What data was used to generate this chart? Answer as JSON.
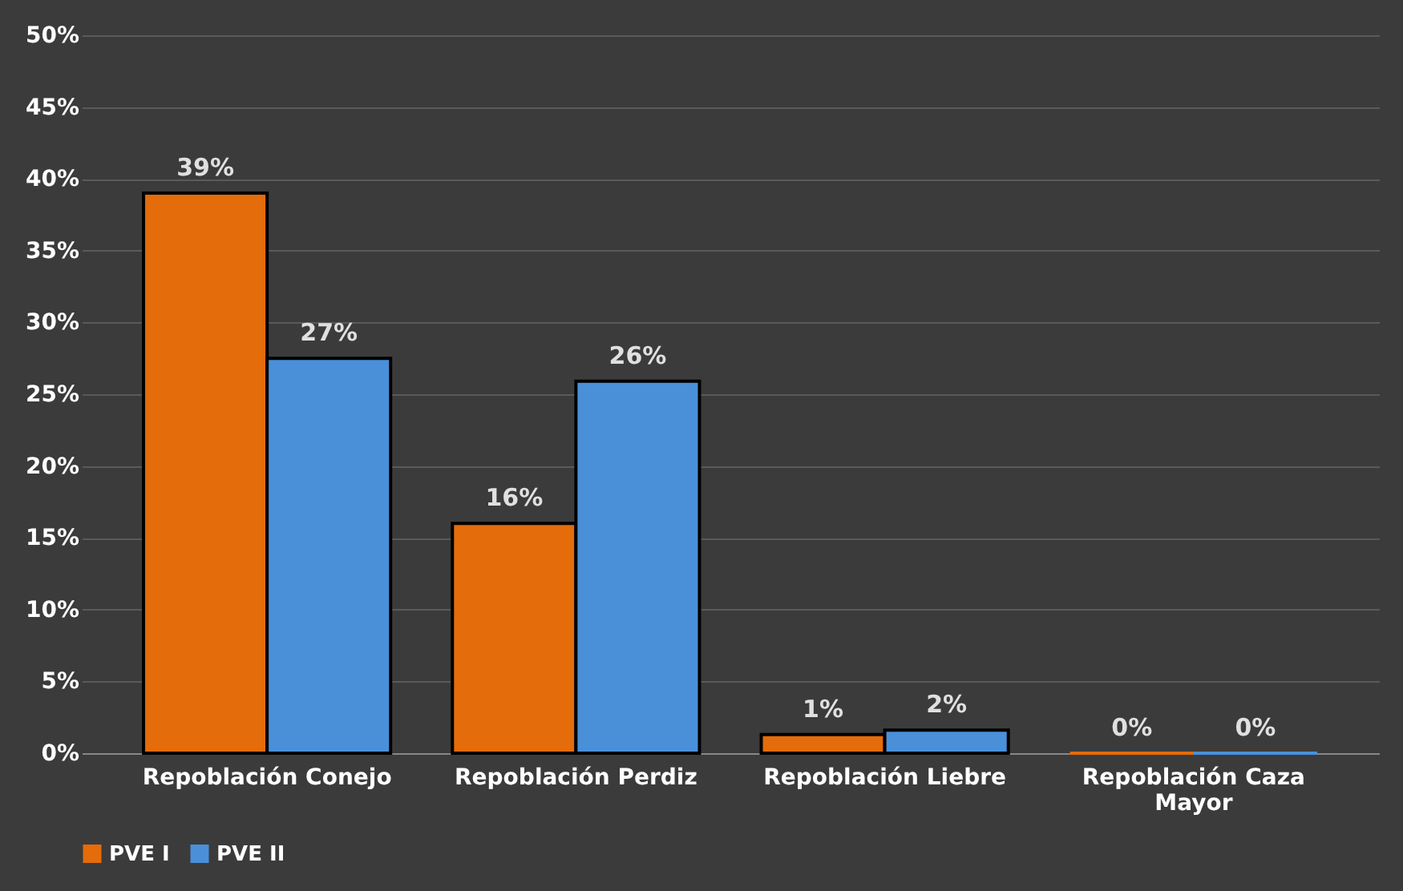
{
  "chart_data": {
    "type": "bar",
    "categories": [
      "Repoblación Conejo",
      "Repoblación Perdiz",
      "Repoblación Liebre",
      "Repoblación Caza Mayor"
    ],
    "series": [
      {
        "name": "PVE I",
        "color": "#e46c0a",
        "values": [
          39,
          16,
          1.3,
          0
        ],
        "value_labels": [
          "39%",
          "16%",
          "1%",
          "0%"
        ]
      },
      {
        "name": "PVE II",
        "color": "#4a90d9",
        "values": [
          27.5,
          25.9,
          1.6,
          0
        ],
        "value_labels": [
          "27%",
          "26%",
          "2%",
          "0%"
        ]
      }
    ],
    "ylim": [
      0,
      50
    ],
    "yticks": [
      {
        "value": 0,
        "label": "0%"
      },
      {
        "value": 5,
        "label": "5%"
      },
      {
        "value": 10,
        "label": "10%"
      },
      {
        "value": 15,
        "label": "15%"
      },
      {
        "value": 20,
        "label": "20%"
      },
      {
        "value": 25,
        "label": "25%"
      },
      {
        "value": 30,
        "label": "30%"
      },
      {
        "value": 35,
        "label": "35%"
      },
      {
        "value": 40,
        "label": "40%"
      },
      {
        "value": 45,
        "label": "45%"
      },
      {
        "value": 50,
        "label": "50%"
      }
    ],
    "grid": "y",
    "legend": "bottom"
  }
}
